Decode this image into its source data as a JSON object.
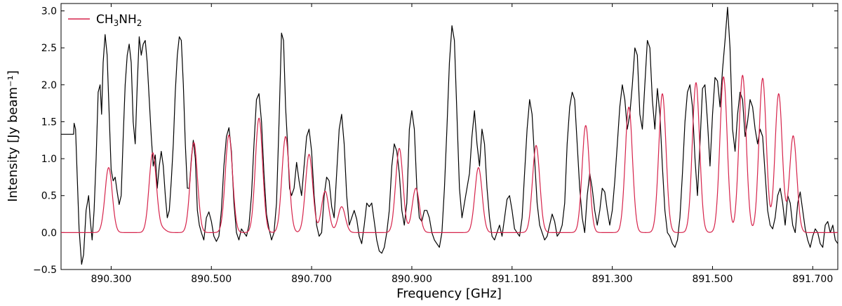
{
  "chart_data": {
    "type": "line",
    "xlabel": "Frequency [GHz]",
    "ylabel": "Intensity [Jy beam⁻¹]",
    "xlim": [
      890.2,
      891.75
    ],
    "ylim": [
      -0.5,
      3.1
    ],
    "x_ticks": [
      890.3,
      890.5,
      890.7,
      890.9,
      891.1,
      891.3,
      891.5,
      891.7
    ],
    "x_tick_labels": [
      "890.300",
      "890.500",
      "890.700",
      "890.900",
      "891.100",
      "891.300",
      "891.500",
      "891.700"
    ],
    "y_ticks": [
      -0.5,
      0.0,
      0.5,
      1.0,
      1.5,
      2.0,
      2.5,
      3.0
    ],
    "y_tick_labels": [
      "−0.5",
      "0.0",
      "0.5",
      "1.0",
      "1.5",
      "2.0",
      "2.5",
      "3.0"
    ],
    "legend": {
      "placement": "top-left",
      "entries": [
        "CH3NH2"
      ]
    },
    "grid": false,
    "observed_spectrum": {
      "color": "#000000",
      "points": [
        [
          890.2,
          1.33
        ],
        [
          890.225,
          1.33
        ],
        [
          890.226,
          1.48
        ],
        [
          890.229,
          1.4
        ],
        [
          890.232,
          0.8
        ],
        [
          890.236,
          0.05
        ],
        [
          890.241,
          -0.43
        ],
        [
          890.245,
          -0.3
        ],
        [
          890.25,
          0.3
        ],
        [
          890.255,
          0.5
        ],
        [
          890.258,
          0.2
        ],
        [
          890.262,
          -0.1
        ],
        [
          890.266,
          0.3
        ],
        [
          890.27,
          1.0
        ],
        [
          890.274,
          1.9
        ],
        [
          890.278,
          2.0
        ],
        [
          890.281,
          1.6
        ],
        [
          890.284,
          2.3
        ],
        [
          890.288,
          2.68
        ],
        [
          890.292,
          2.4
        ],
        [
          890.296,
          1.6
        ],
        [
          890.3,
          0.85
        ],
        [
          890.304,
          0.7
        ],
        [
          890.308,
          0.75
        ],
        [
          890.312,
          0.55
        ],
        [
          890.316,
          0.38
        ],
        [
          890.32,
          0.5
        ],
        [
          890.324,
          1.3
        ],
        [
          890.328,
          2.0
        ],
        [
          890.332,
          2.4
        ],
        [
          890.336,
          2.55
        ],
        [
          890.34,
          2.3
        ],
        [
          890.344,
          1.5
        ],
        [
          890.348,
          1.2
        ],
        [
          890.352,
          2.0
        ],
        [
          890.356,
          2.65
        ],
        [
          890.36,
          2.4
        ],
        [
          890.364,
          2.55
        ],
        [
          890.368,
          2.6
        ],
        [
          890.372,
          2.3
        ],
        [
          890.376,
          1.8
        ],
        [
          890.38,
          1.3
        ],
        [
          890.384,
          0.9
        ],
        [
          890.388,
          1.05
        ],
        [
          890.392,
          0.6
        ],
        [
          890.396,
          0.9
        ],
        [
          890.4,
          1.1
        ],
        [
          890.404,
          0.9
        ],
        [
          890.408,
          0.5
        ],
        [
          890.412,
          0.2
        ],
        [
          890.416,
          0.3
        ],
        [
          890.42,
          0.7
        ],
        [
          890.424,
          1.2
        ],
        [
          890.428,
          1.9
        ],
        [
          890.432,
          2.4
        ],
        [
          890.436,
          2.65
        ],
        [
          890.44,
          2.6
        ],
        [
          890.444,
          2.0
        ],
        [
          890.448,
          1.2
        ],
        [
          890.452,
          0.6
        ],
        [
          890.456,
          0.6
        ],
        [
          890.46,
          1.0
        ],
        [
          890.464,
          1.25
        ],
        [
          890.468,
          1.0
        ],
        [
          890.472,
          0.3
        ],
        [
          890.476,
          0.1
        ],
        [
          890.48,
          0.0
        ],
        [
          890.485,
          -0.1
        ],
        [
          890.49,
          0.2
        ],
        [
          890.495,
          0.28
        ],
        [
          890.5,
          0.15
        ],
        [
          890.505,
          -0.05
        ],
        [
          890.51,
          -0.12
        ],
        [
          890.515,
          -0.05
        ],
        [
          890.52,
          0.3
        ],
        [
          890.525,
          0.9
        ],
        [
          890.53,
          1.3
        ],
        [
          890.535,
          1.42
        ],
        [
          890.54,
          1.1
        ],
        [
          890.545,
          0.4
        ],
        [
          890.55,
          0.0
        ],
        [
          890.555,
          -0.1
        ],
        [
          890.56,
          0.05
        ],
        [
          890.565,
          0.0
        ],
        [
          890.57,
          -0.05
        ],
        [
          890.575,
          0.1
        ],
        [
          890.58,
          0.5
        ],
        [
          890.585,
          1.2
        ],
        [
          890.59,
          1.8
        ],
        [
          890.595,
          1.88
        ],
        [
          890.6,
          1.5
        ],
        [
          890.605,
          0.8
        ],
        [
          890.61,
          0.25
        ],
        [
          890.615,
          0.05
        ],
        [
          890.62,
          -0.1
        ],
        [
          890.625,
          0.0
        ],
        [
          890.63,
          0.4
        ],
        [
          890.635,
          1.5
        ],
        [
          890.64,
          2.7
        ],
        [
          890.644,
          2.6
        ],
        [
          890.648,
          1.7
        ],
        [
          890.652,
          1.2
        ],
        [
          890.656,
          0.6
        ],
        [
          890.66,
          0.5
        ],
        [
          890.665,
          0.6
        ],
        [
          890.67,
          0.95
        ],
        [
          890.675,
          0.7
        ],
        [
          890.68,
          0.5
        ],
        [
          890.685,
          0.9
        ],
        [
          890.69,
          1.3
        ],
        [
          890.695,
          1.4
        ],
        [
          890.7,
          1.1
        ],
        [
          890.705,
          0.5
        ],
        [
          890.71,
          0.1
        ],
        [
          890.715,
          -0.05
        ],
        [
          890.72,
          0.0
        ],
        [
          890.725,
          0.5
        ],
        [
          890.73,
          0.75
        ],
        [
          890.735,
          0.7
        ],
        [
          890.74,
          0.35
        ],
        [
          890.745,
          0.2
        ],
        [
          890.75,
          0.8
        ],
        [
          890.755,
          1.4
        ],
        [
          890.76,
          1.6
        ],
        [
          890.765,
          1.2
        ],
        [
          890.77,
          0.5
        ],
        [
          890.775,
          0.1
        ],
        [
          890.78,
          0.2
        ],
        [
          890.785,
          0.3
        ],
        [
          890.79,
          0.18
        ],
        [
          890.795,
          -0.05
        ],
        [
          890.8,
          -0.15
        ],
        [
          890.805,
          0.1
        ],
        [
          890.81,
          0.4
        ],
        [
          890.815,
          0.35
        ],
        [
          890.82,
          0.4
        ],
        [
          890.825,
          0.15
        ],
        [
          890.83,
          -0.1
        ],
        [
          890.835,
          -0.25
        ],
        [
          890.84,
          -0.28
        ],
        [
          890.845,
          -0.2
        ],
        [
          890.85,
          0.0
        ],
        [
          890.855,
          0.3
        ],
        [
          890.86,
          0.9
        ],
        [
          890.865,
          1.2
        ],
        [
          890.87,
          1.1
        ],
        [
          890.875,
          0.8
        ],
        [
          890.88,
          0.3
        ],
        [
          890.885,
          0.1
        ],
        [
          890.89,
          0.4
        ],
        [
          890.895,
          1.4
        ],
        [
          890.9,
          1.65
        ],
        [
          890.905,
          1.4
        ],
        [
          890.91,
          0.6
        ],
        [
          890.915,
          0.2
        ],
        [
          890.92,
          0.15
        ],
        [
          890.925,
          0.3
        ],
        [
          890.93,
          0.3
        ],
        [
          890.935,
          0.2
        ],
        [
          890.94,
          0.0
        ],
        [
          890.945,
          -0.1
        ],
        [
          890.95,
          -0.15
        ],
        [
          890.955,
          -0.2
        ],
        [
          890.96,
          0.0
        ],
        [
          890.965,
          0.6
        ],
        [
          890.97,
          1.4
        ],
        [
          890.975,
          2.3
        ],
        [
          890.98,
          2.8
        ],
        [
          890.985,
          2.6
        ],
        [
          890.99,
          1.6
        ],
        [
          890.995,
          0.6
        ],
        [
          891.0,
          0.2
        ],
        [
          891.005,
          0.4
        ],
        [
          891.01,
          0.6
        ],
        [
          891.015,
          0.8
        ],
        [
          891.02,
          1.3
        ],
        [
          891.025,
          1.65
        ],
        [
          891.03,
          1.2
        ],
        [
          891.035,
          0.9
        ],
        [
          891.04,
          1.4
        ],
        [
          891.045,
          1.2
        ],
        [
          891.05,
          0.6
        ],
        [
          891.055,
          0.2
        ],
        [
          891.06,
          -0.05
        ],
        [
          891.065,
          -0.1
        ],
        [
          891.07,
          0.0
        ],
        [
          891.075,
          0.1
        ],
        [
          891.08,
          -0.05
        ],
        [
          891.085,
          0.2
        ],
        [
          891.09,
          0.45
        ],
        [
          891.095,
          0.5
        ],
        [
          891.1,
          0.3
        ],
        [
          891.105,
          0.05
        ],
        [
          891.11,
          0.0
        ],
        [
          891.115,
          -0.05
        ],
        [
          891.12,
          0.2
        ],
        [
          891.125,
          0.8
        ],
        [
          891.13,
          1.4
        ],
        [
          891.135,
          1.8
        ],
        [
          891.14,
          1.6
        ],
        [
          891.145,
          1.0
        ],
        [
          891.15,
          0.4
        ],
        [
          891.155,
          0.1
        ],
        [
          891.16,
          0.0
        ],
        [
          891.165,
          -0.1
        ],
        [
          891.17,
          -0.05
        ],
        [
          891.175,
          0.1
        ],
        [
          891.18,
          0.25
        ],
        [
          891.185,
          0.15
        ],
        [
          891.19,
          -0.05
        ],
        [
          891.195,
          0.0
        ],
        [
          891.2,
          0.1
        ],
        [
          891.205,
          0.4
        ],
        [
          891.21,
          1.2
        ],
        [
          891.215,
          1.7
        ],
        [
          891.22,
          1.9
        ],
        [
          891.225,
          1.8
        ],
        [
          891.23,
          1.2
        ],
        [
          891.235,
          0.6
        ],
        [
          891.24,
          0.2
        ],
        [
          891.245,
          0.0
        ],
        [
          891.25,
          0.5
        ],
        [
          891.255,
          0.8
        ],
        [
          891.26,
          0.6
        ],
        [
          891.265,
          0.3
        ],
        [
          891.27,
          0.1
        ],
        [
          891.275,
          0.3
        ],
        [
          891.28,
          0.6
        ],
        [
          891.285,
          0.55
        ],
        [
          891.29,
          0.3
        ],
        [
          891.295,
          0.1
        ],
        [
          891.3,
          0.3
        ],
        [
          891.305,
          0.7
        ],
        [
          891.31,
          1.2
        ],
        [
          891.315,
          1.7
        ],
        [
          891.32,
          2.0
        ],
        [
          891.325,
          1.8
        ],
        [
          891.33,
          1.4
        ],
        [
          891.335,
          1.6
        ],
        [
          891.34,
          2.0
        ],
        [
          891.345,
          2.5
        ],
        [
          891.35,
          2.4
        ],
        [
          891.355,
          1.6
        ],
        [
          891.36,
          1.4
        ],
        [
          891.365,
          2.0
        ],
        [
          891.37,
          2.6
        ],
        [
          891.375,
          2.5
        ],
        [
          891.38,
          1.8
        ],
        [
          891.385,
          1.4
        ],
        [
          891.39,
          1.95
        ],
        [
          891.395,
          1.6
        ],
        [
          891.4,
          0.9
        ],
        [
          891.405,
          0.3
        ],
        [
          891.41,
          0.0
        ],
        [
          891.415,
          -0.05
        ],
        [
          891.42,
          -0.15
        ],
        [
          891.425,
          -0.2
        ],
        [
          891.43,
          -0.1
        ],
        [
          891.435,
          0.2
        ],
        [
          891.44,
          0.8
        ],
        [
          891.445,
          1.5
        ],
        [
          891.45,
          1.9
        ],
        [
          891.455,
          2.0
        ],
        [
          891.46,
          1.7
        ],
        [
          891.465,
          1.0
        ],
        [
          891.47,
          0.5
        ],
        [
          891.475,
          1.2
        ],
        [
          891.48,
          1.95
        ],
        [
          891.485,
          2.0
        ],
        [
          891.49,
          1.5
        ],
        [
          891.495,
          0.9
        ],
        [
          891.5,
          1.6
        ],
        [
          891.505,
          2.1
        ],
        [
          891.51,
          2.05
        ],
        [
          891.515,
          1.7
        ],
        [
          891.52,
          2.2
        ],
        [
          891.525,
          2.6
        ],
        [
          891.53,
          3.05
        ],
        [
          891.535,
          2.5
        ],
        [
          891.54,
          1.4
        ],
        [
          891.545,
          1.1
        ],
        [
          891.55,
          1.6
        ],
        [
          891.555,
          1.9
        ],
        [
          891.56,
          1.8
        ],
        [
          891.565,
          1.3
        ],
        [
          891.57,
          1.5
        ],
        [
          891.575,
          1.8
        ],
        [
          891.58,
          1.7
        ],
        [
          891.585,
          1.4
        ],
        [
          891.59,
          1.2
        ],
        [
          891.595,
          1.4
        ],
        [
          891.6,
          1.3
        ],
        [
          891.605,
          0.8
        ],
        [
          891.61,
          0.3
        ],
        [
          891.615,
          0.1
        ],
        [
          891.62,
          0.05
        ],
        [
          891.625,
          0.2
        ],
        [
          891.63,
          0.5
        ],
        [
          891.635,
          0.6
        ],
        [
          891.64,
          0.4
        ],
        [
          891.645,
          0.1
        ],
        [
          891.65,
          0.5
        ],
        [
          891.655,
          0.4
        ],
        [
          891.66,
          0.1
        ],
        [
          891.665,
          0.0
        ],
        [
          891.67,
          0.4
        ],
        [
          891.675,
          0.55
        ],
        [
          891.68,
          0.3
        ],
        [
          891.685,
          0.05
        ],
        [
          891.69,
          -0.1
        ],
        [
          891.695,
          -0.2
        ],
        [
          891.7,
          -0.05
        ],
        [
          891.705,
          0.05
        ],
        [
          891.71,
          0.0
        ],
        [
          891.715,
          -0.15
        ],
        [
          891.72,
          -0.2
        ],
        [
          891.725,
          0.1
        ],
        [
          891.73,
          0.15
        ],
        [
          891.735,
          0.0
        ],
        [
          891.74,
          0.1
        ],
        [
          891.745,
          -0.1
        ],
        [
          891.75,
          -0.15
        ]
      ]
    },
    "series": [
      {
        "name": "CH3NH2",
        "color": "#d6234b",
        "line_width": 0.00725,
        "lines": [
          [
            890.295,
            0.88
          ],
          [
            890.383,
            1.08
          ],
          [
            890.402,
            0.05
          ],
          [
            890.465,
            1.22
          ],
          [
            890.535,
            1.32
          ],
          [
            890.595,
            1.55
          ],
          [
            890.648,
            1.3
          ],
          [
            890.695,
            1.06
          ],
          [
            890.727,
            0.56
          ],
          [
            890.76,
            0.35
          ],
          [
            890.875,
            1.14
          ],
          [
            890.908,
            0.6
          ],
          [
            891.033,
            0.88
          ],
          [
            891.148,
            1.18
          ],
          [
            891.247,
            1.45
          ],
          [
            891.333,
            1.7
          ],
          [
            891.4,
            1.88
          ],
          [
            891.467,
            2.03
          ],
          [
            891.522,
            2.11
          ],
          [
            891.56,
            2.13
          ],
          [
            891.6,
            2.09
          ],
          [
            891.632,
            1.88
          ],
          [
            891.661,
            1.31
          ]
        ]
      }
    ]
  }
}
